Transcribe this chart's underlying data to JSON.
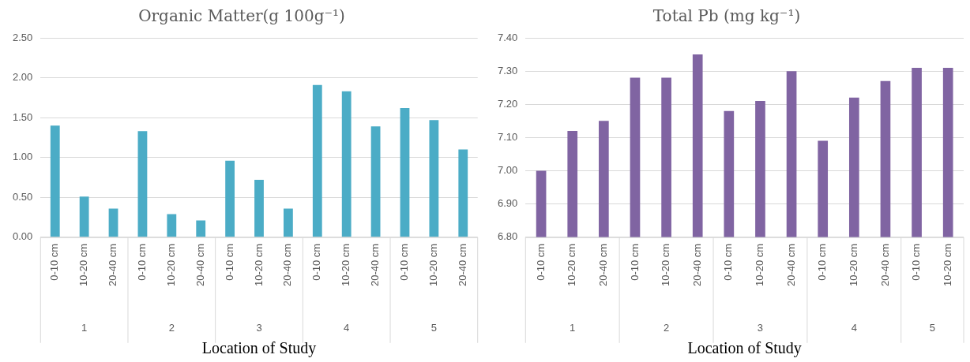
{
  "chart_data": [
    {
      "type": "bar",
      "title": "Organic Matter(g 100g⁻¹)",
      "xlabel": "Location of Study",
      "categories": [
        "0-10 cm",
        "10-20 cm",
        "20-40 cm",
        "0-10 cm",
        "10-20 cm",
        "20-40 cm",
        "0-10 cm",
        "10-20 cm",
        "20-40 cm",
        "0-10 cm",
        "10-20 cm",
        "20-40 cm",
        "0-10 cm",
        "10-20 cm",
        "20-40 cm"
      ],
      "values": [
        1.4,
        0.51,
        0.36,
        1.33,
        0.29,
        0.21,
        0.96,
        0.72,
        0.36,
        1.91,
        1.83,
        1.39,
        1.62,
        1.47,
        1.1
      ],
      "color": "#4bacc6",
      "ylim": [
        0,
        2.5
      ],
      "yticks": [
        {
          "value": 0,
          "label": "0.00"
        },
        {
          "value": 0.5,
          "label": "0.50"
        },
        {
          "value": 1,
          "label": "1.00"
        },
        {
          "value": 1.5,
          "label": "1.50"
        },
        {
          "value": 2,
          "label": "2.00"
        },
        {
          "value": 2.5,
          "label": "2.50"
        }
      ],
      "annotations": [
        "1",
        "2",
        "3",
        "4",
        "5"
      ],
      "grid": "y",
      "legend": false
    },
    {
      "type": "bar",
      "title": "Total Pb (mg kg⁻¹)",
      "xlabel": "Location of Study",
      "categories": [
        "0-10 cm",
        "10-20 cm",
        "20-40 cm",
        "0-10 cm",
        "10-20 cm",
        "20-40 cm",
        "0-10 cm",
        "10-20 cm",
        "20-40 cm",
        "0-10 cm",
        "10-20 cm",
        "20-40 cm",
        "0-10 cm",
        "10-20 cm"
      ],
      "values": [
        7.0,
        7.12,
        7.15,
        7.28,
        7.28,
        7.35,
        7.18,
        7.21,
        7.3,
        7.09,
        7.22,
        7.27,
        7.31,
        7.31
      ],
      "color": "#8064a2",
      "ylim": [
        6.8,
        7.4
      ],
      "yticks": [
        {
          "value": 6.8,
          "label": "6.80"
        },
        {
          "value": 6.9,
          "label": "6.90"
        },
        {
          "value": 7.0,
          "label": "7.00"
        },
        {
          "value": 7.1,
          "label": "7.10"
        },
        {
          "value": 7.2,
          "label": "7.20"
        },
        {
          "value": 7.3,
          "label": "7.30"
        },
        {
          "value": 7.4,
          "label": "7.40"
        }
      ],
      "annotations": [
        "1",
        "2",
        "3",
        "4",
        "5"
      ],
      "grid": "y",
      "legend": false
    }
  ]
}
